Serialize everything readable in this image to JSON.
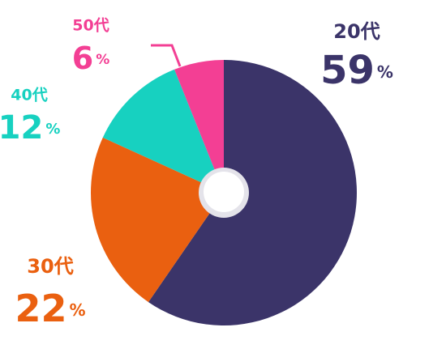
{
  "chart_data": {
    "type": "pie",
    "categories": [
      "20代",
      "30代",
      "40代",
      "50代"
    ],
    "values": [
      59,
      22,
      12,
      6
    ],
    "unit": "%",
    "colors": [
      "#3b3469",
      "#ea6010",
      "#17d1c0",
      "#f33f94"
    ]
  }
}
